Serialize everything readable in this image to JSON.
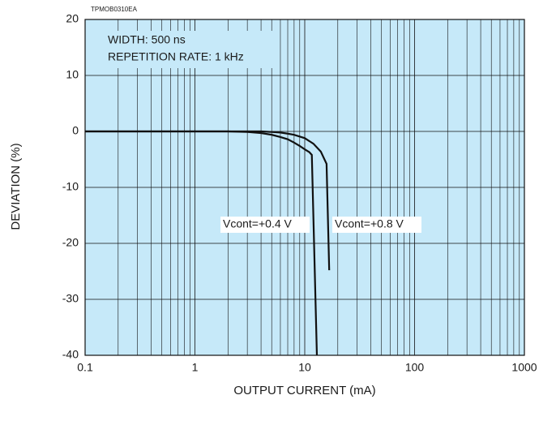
{
  "chart_data": {
    "type": "line",
    "code": "TPMOB0310EA",
    "annotations": [
      "WIDTH: 500 ns",
      "REPETITION RATE: 1 kHz"
    ],
    "xlabel": "OUTPUT CURRENT (mA)",
    "ylabel": "DEVIATION (%)",
    "xscale": "log",
    "xlim": [
      0.1,
      1000
    ],
    "xticks": [
      0.1,
      1,
      10,
      100,
      1000
    ],
    "xminorticks": [
      0.2,
      0.3,
      0.4,
      0.5,
      0.6,
      0.7,
      0.8,
      0.9,
      2,
      3,
      4,
      5,
      6,
      7,
      8,
      9,
      20,
      30,
      40,
      50,
      60,
      70,
      80,
      90,
      200,
      300,
      400,
      500,
      600,
      700,
      800,
      900
    ],
    "ylim": [
      -40,
      20
    ],
    "yticks": [
      20,
      10,
      0,
      -10,
      -20,
      -30,
      -40
    ],
    "grid": true,
    "background": "#c6e9f9",
    "series": [
      {
        "name": "Vcont=+0.4 V",
        "color": "#111111",
        "x": [
          0.1,
          1,
          2,
          3,
          4,
          5,
          6,
          7,
          8,
          9,
          10,
          11,
          11.6,
          12.9
        ],
        "values": [
          0,
          0,
          0,
          -0.1,
          -0.3,
          -0.6,
          -1.0,
          -1.4,
          -2,
          -2.6,
          -3.2,
          -3.7,
          -4.2,
          -40
        ]
      },
      {
        "name": "Vcont=+0.8 V",
        "color": "#111111",
        "x": [
          0.1,
          1,
          4,
          5,
          6,
          7,
          8,
          10,
          12,
          14,
          15.8,
          16.7
        ],
        "values": [
          0,
          0,
          0,
          -0.1,
          -0.2,
          -0.4,
          -0.6,
          -1.2,
          -2.2,
          -3.6,
          -5.8,
          -24.8
        ]
      }
    ]
  }
}
